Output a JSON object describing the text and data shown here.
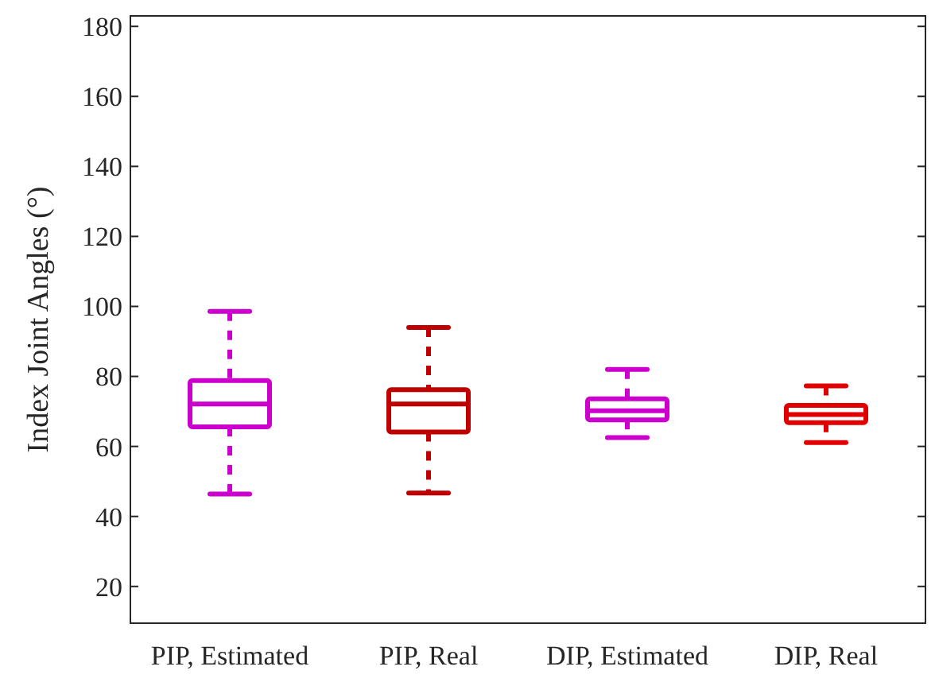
{
  "chart_data": {
    "type": "box",
    "ylabel": "Index Joint Angles (°)",
    "categories": [
      "PIP, Estimated",
      "PIP, Real",
      "DIP, Estimated",
      "DIP, Real"
    ],
    "boxes": [
      {
        "low": 46.4,
        "q1": 65.6,
        "median": 72.1,
        "q3": 78.8,
        "high": 98.6
      },
      {
        "low": 46.7,
        "q1": 64.1,
        "median": 72.1,
        "q3": 76.2,
        "high": 94
      },
      {
        "low": 62.5,
        "q1": 67.6,
        "median": 70.2,
        "q3": 73.6,
        "high": 82
      },
      {
        "low": 61.1,
        "q1": 66.8,
        "median": 69.1,
        "q3": 71.7,
        "high": 77.3
      }
    ],
    "colors": [
      "#cc00cc",
      "#c00000",
      "#cc00cc",
      "#e00000"
    ],
    "ylim": [
      9.5,
      183
    ],
    "yticks": [
      20,
      40,
      60,
      80,
      100,
      120,
      140,
      160,
      180
    ],
    "grid": false,
    "line_style": "dashed"
  }
}
